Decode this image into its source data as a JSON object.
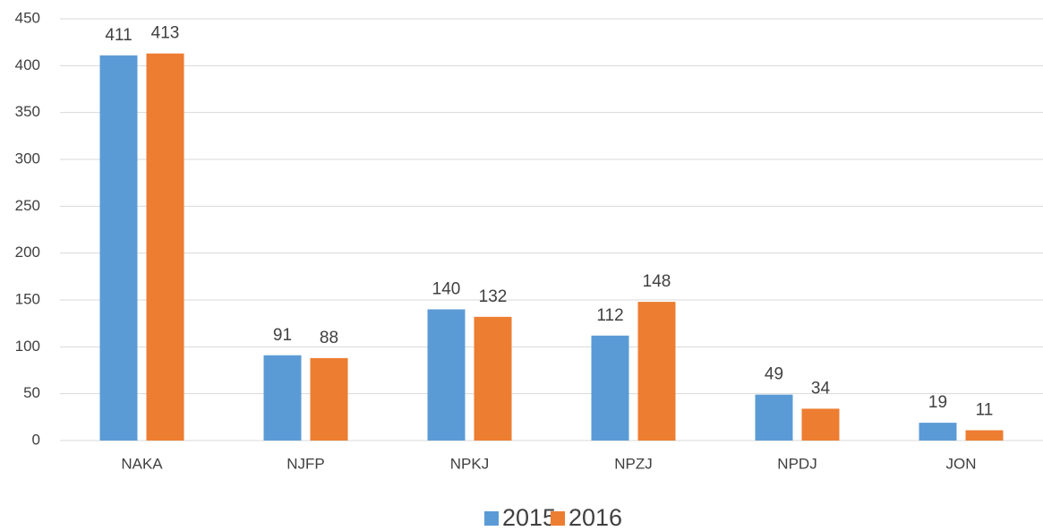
{
  "chart_data": {
    "type": "bar",
    "categories": [
      "NAKA",
      "NJFP",
      "NPKJ",
      "NPZJ",
      "NPDJ",
      "JON"
    ],
    "series": [
      {
        "name": "2015",
        "color": "#5b9bd5",
        "values": [
          411,
          91,
          140,
          112,
          49,
          19
        ]
      },
      {
        "name": "2016",
        "color": "#ed7d31",
        "values": [
          413,
          88,
          132,
          148,
          34,
          11
        ]
      }
    ],
    "ylim": [
      0,
      450
    ],
    "yticks": [
      0,
      50,
      100,
      150,
      200,
      250,
      300,
      350,
      400,
      450
    ],
    "grid": true,
    "legend": "bottom"
  }
}
